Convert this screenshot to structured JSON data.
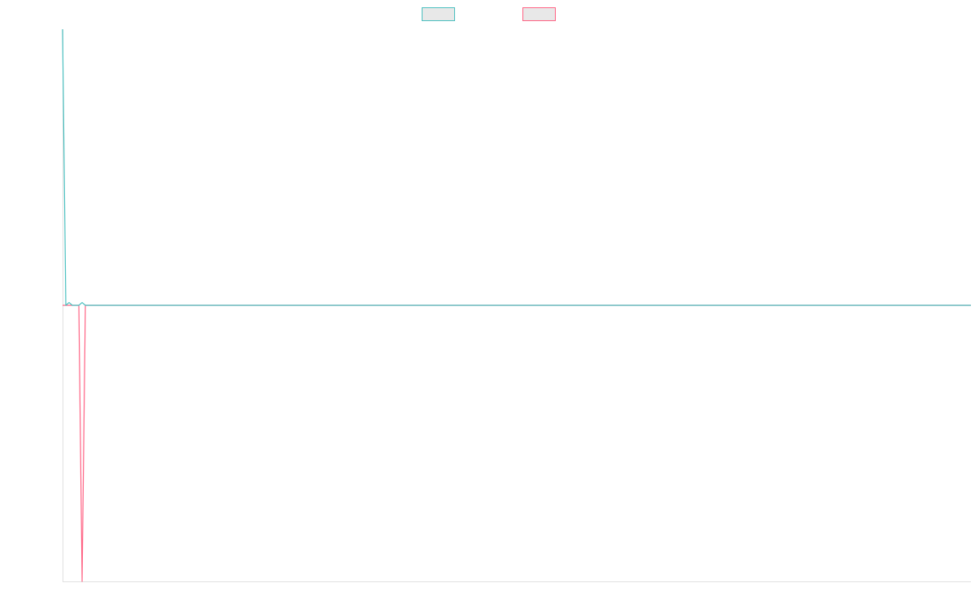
{
  "chart_data": {
    "type": "line",
    "x": [
      0,
      1,
      2,
      3,
      4,
      5,
      6,
      7,
      279
    ],
    "xlim": [
      0,
      279
    ],
    "ylim": [
      -1,
      1
    ],
    "legend": "top",
    "series": [
      {
        "color": "#4bc0c0",
        "values": [
          1,
          0,
          0.01,
          0,
          0,
          0,
          0.01,
          0,
          0
        ]
      },
      {
        "color": "#ff6384",
        "values": [
          0,
          0,
          0,
          0,
          0,
          0,
          -1,
          0,
          0
        ]
      }
    ]
  }
}
